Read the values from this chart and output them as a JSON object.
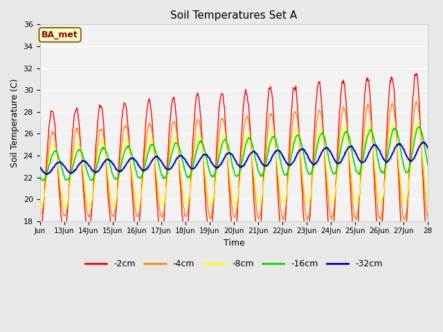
{
  "title": "Soil Temperatures Set A",
  "xlabel": "Time",
  "ylabel": "Soil Temperature (C)",
  "ylim": [
    18,
    36
  ],
  "yticks": [
    18,
    20,
    22,
    24,
    26,
    28,
    30,
    32,
    34,
    36
  ],
  "annotation": "BA_met",
  "bg_color": "#e8e8e8",
  "plot_bg_color": "#f0f0f0",
  "line_colors": {
    "-2cm": "#ff0000",
    "-4cm": "#ff8800",
    "-8cm": "#ffff00",
    "-16cm": "#00dd00",
    "-32cm": "#0000dd"
  },
  "xtick_labels": [
    "Jun",
    "13Jun",
    "14Jun",
    "15Jun",
    "16Jun",
    "17Jun",
    "18Jun",
    "19Jun",
    "20Jun",
    "21Jun",
    "22Jun",
    "23Jun",
    "24Jun",
    "25Jun",
    "26Jun",
    "27Jun",
    "28"
  ],
  "figsize": [
    6.4,
    4.8
  ],
  "dpi": 100
}
